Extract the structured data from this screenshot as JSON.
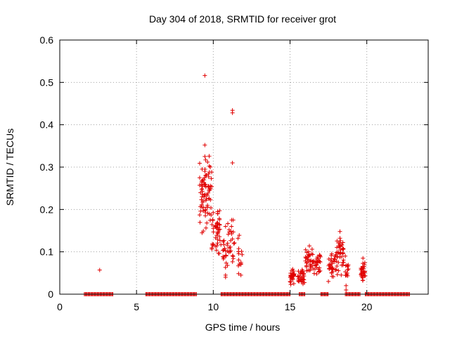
{
  "chart_data": {
    "type": "scatter",
    "title": "Day 304 of 2018, SRMTID for receiver grot",
    "xlabel": "GPS time / hours",
    "ylabel": "SRMTID / TECUs",
    "xlim": [
      0,
      24
    ],
    "ylim": [
      0,
      0.6
    ],
    "x_ticks": [
      0,
      5,
      10,
      15,
      20
    ],
    "y_ticks": [
      0,
      0.1,
      0.2,
      0.3,
      0.4,
      0.5,
      0.6
    ],
    "x_tick_labels": [
      "0",
      "5",
      "10",
      "15",
      "20"
    ],
    "y_tick_labels": [
      "0",
      "0.1",
      "0.2",
      "0.3",
      "0.4",
      "0.5",
      "0.6"
    ],
    "grid": true,
    "marker": "+",
    "color": "#e00000",
    "zero_ranges": [
      [
        1.6,
        3.5
      ],
      [
        5.6,
        8.9
      ],
      [
        10.5,
        15.0
      ],
      [
        15.6,
        16.0
      ],
      [
        17.0,
        17.5
      ],
      [
        18.6,
        19.6
      ],
      [
        19.9,
        22.8
      ]
    ],
    "clusters": [
      {
        "x_range": [
          9.1,
          9.9
        ],
        "y_range": [
          0.14,
          0.33
        ],
        "count": 80
      },
      {
        "x_range": [
          9.9,
          10.5
        ],
        "y_range": [
          0.09,
          0.21
        ],
        "count": 45
      },
      {
        "x_range": [
          10.6,
          11.4
        ],
        "y_range": [
          0.06,
          0.17
        ],
        "count": 40
      },
      {
        "x_range": [
          11.6,
          11.9
        ],
        "y_range": [
          0.04,
          0.16
        ],
        "count": 12
      },
      {
        "x_range": [
          15.0,
          15.3
        ],
        "y_range": [
          0.02,
          0.06
        ],
        "count": 30
      },
      {
        "x_range": [
          15.5,
          16.0
        ],
        "y_range": [
          0.02,
          0.06
        ],
        "count": 30
      },
      {
        "x_range": [
          16.0,
          16.5
        ],
        "y_range": [
          0.05,
          0.12
        ],
        "count": 35
      },
      {
        "x_range": [
          16.5,
          17.0
        ],
        "y_range": [
          0.04,
          0.1
        ],
        "count": 30
      },
      {
        "x_range": [
          17.5,
          18.0
        ],
        "y_range": [
          0.03,
          0.1
        ],
        "count": 35
      },
      {
        "x_range": [
          18.0,
          18.5
        ],
        "y_range": [
          0.04,
          0.14
        ],
        "count": 40
      },
      {
        "x_range": [
          18.6,
          18.8
        ],
        "y_range": [
          0.02,
          0.09
        ],
        "count": 12
      },
      {
        "x_range": [
          19.6,
          19.9
        ],
        "y_range": [
          0.03,
          0.08
        ],
        "count": 30
      }
    ],
    "points": [
      [
        2.6,
        0.057
      ],
      [
        9.45,
        0.516
      ],
      [
        9.45,
        0.352
      ],
      [
        9.45,
        0.325
      ],
      [
        9.5,
        0.317
      ],
      [
        9.45,
        0.29
      ],
      [
        9.4,
        0.26
      ],
      [
        9.7,
        0.277
      ],
      [
        11.25,
        0.434
      ],
      [
        11.25,
        0.428
      ],
      [
        11.25,
        0.31
      ],
      [
        10.4,
        0.165
      ],
      [
        10.8,
        0.16
      ],
      [
        11.2,
        0.175
      ],
      [
        11.3,
        0.175
      ],
      [
        10.8,
        0.045
      ],
      [
        10.8,
        0.04
      ],
      [
        11.8,
        0.045
      ],
      [
        11.8,
        0.07
      ],
      [
        11.8,
        0.075
      ],
      [
        18.25,
        0.148
      ],
      [
        18.6,
        0.09
      ],
      [
        18.65,
        0.02
      ],
      [
        18.65,
        0.01
      ],
      [
        17.5,
        0.03
      ],
      [
        19.75,
        0.085
      ]
    ]
  }
}
